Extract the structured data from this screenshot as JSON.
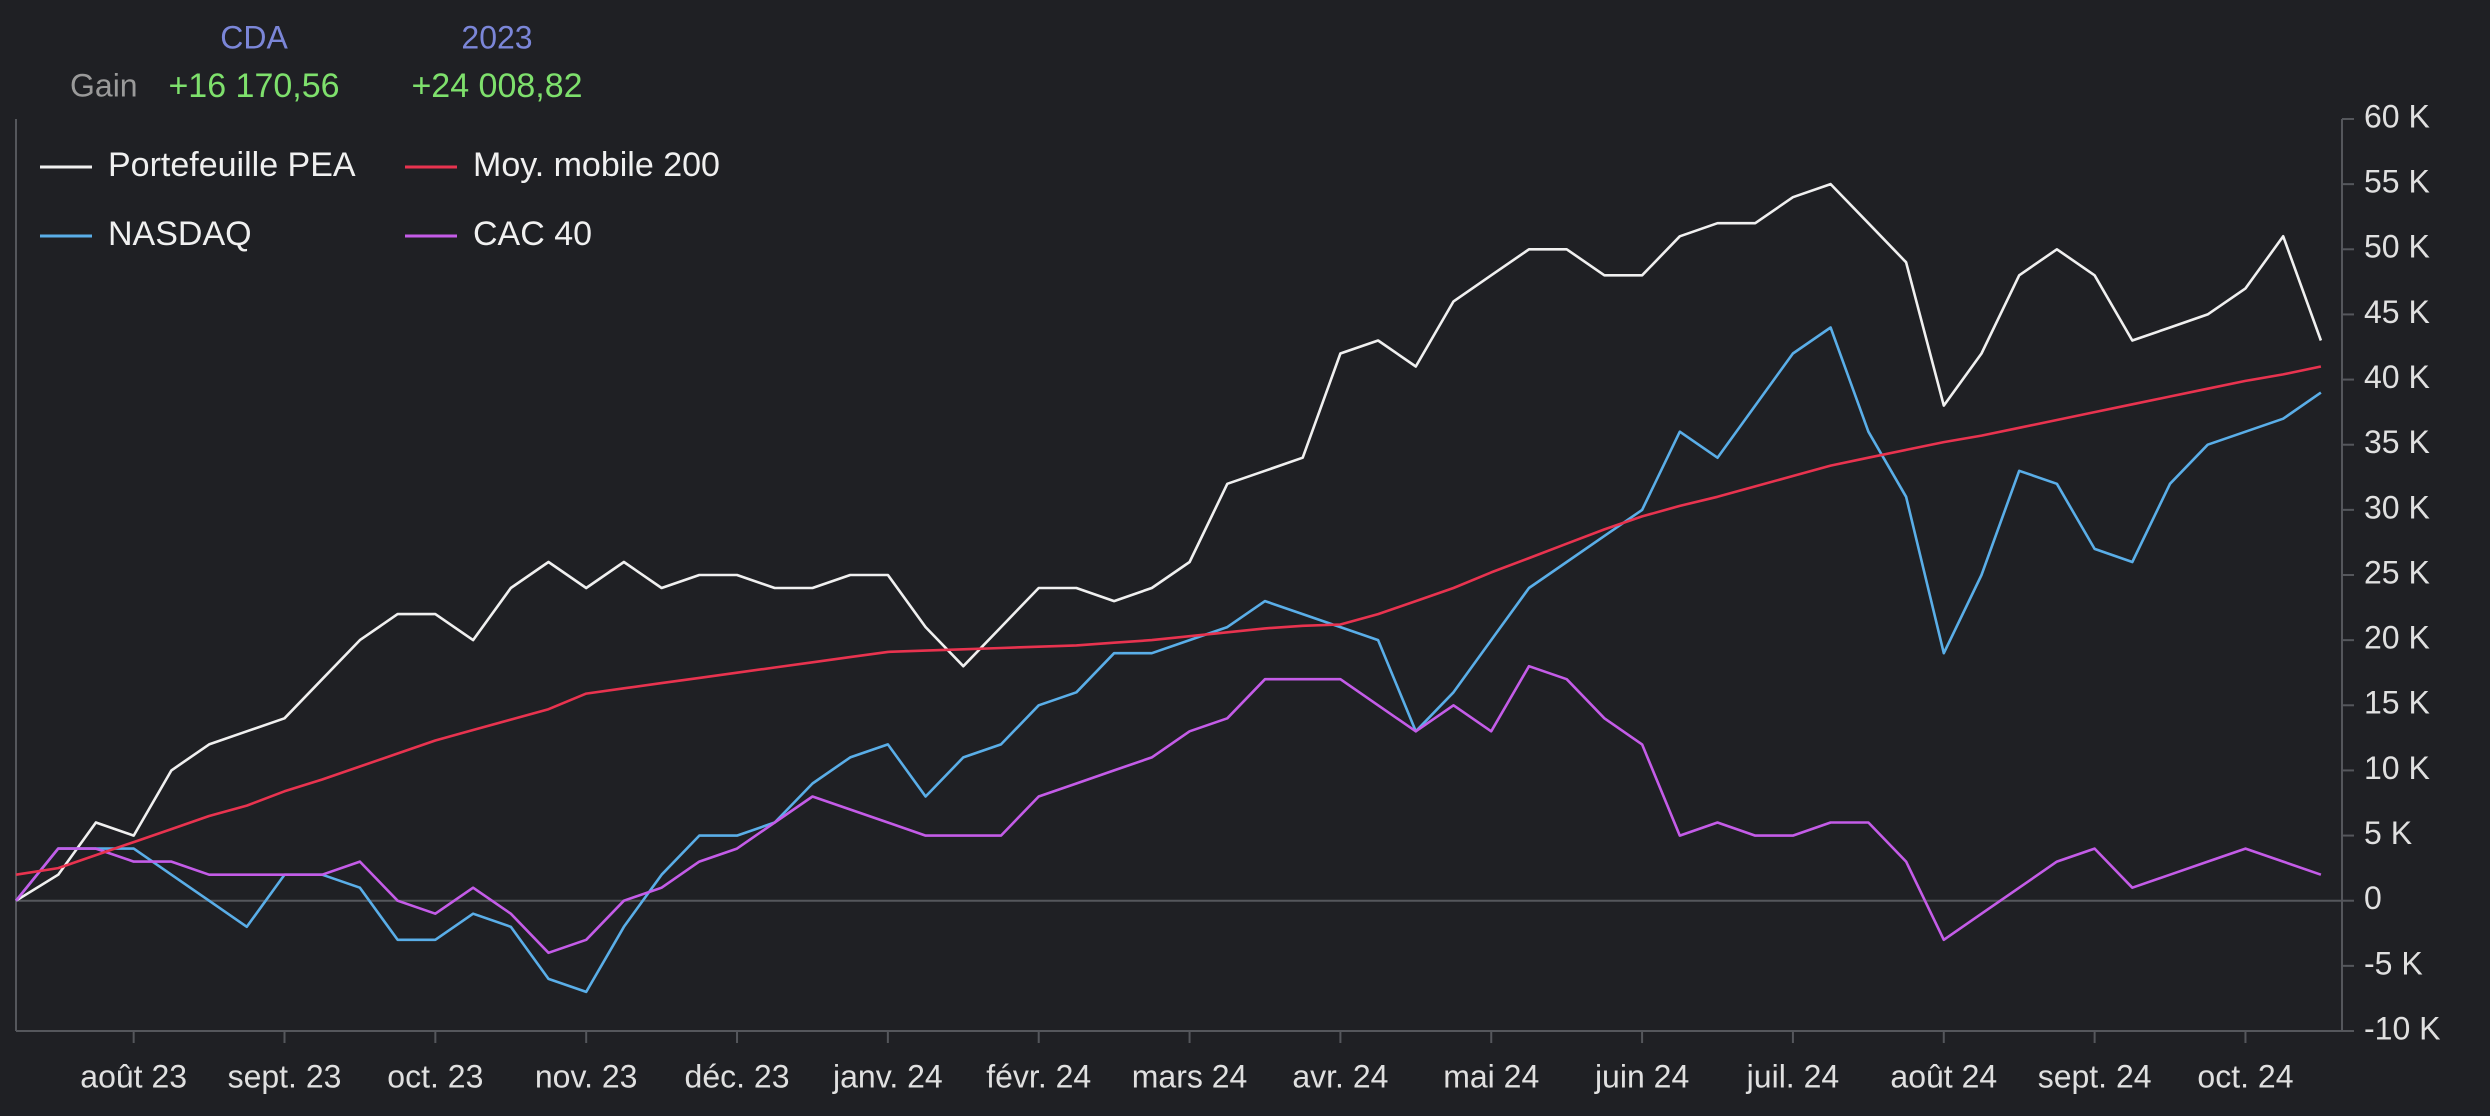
{
  "header": {
    "row_label": "Gain",
    "columns": [
      {
        "title": "CDA",
        "value": "+16 170,56"
      },
      {
        "title": "2023",
        "value": "+24 008,82"
      }
    ]
  },
  "chart_data": {
    "type": "line",
    "legend": "upper left",
    "grid": false,
    "x": [
      0.22,
      0.5,
      0.75,
      1,
      1.25,
      1.5,
      1.75,
      2,
      2.25,
      2.5,
      2.75,
      3,
      3.25,
      3.5,
      3.75,
      4,
      4.25,
      4.5,
      4.75,
      5,
      5.25,
      5.5,
      5.75,
      6,
      6.25,
      6.5,
      6.75,
      7,
      7.25,
      7.5,
      7.75,
      8,
      8.25,
      8.5,
      8.75,
      9,
      9.25,
      9.5,
      9.75,
      10,
      10.25,
      10.5,
      10.75,
      11,
      11.25,
      11.5,
      11.75,
      12,
      12.25,
      12.5,
      12.75,
      13,
      13.25,
      13.5,
      13.75,
      14,
      14.25,
      14.5,
      14.75,
      15,
      15.25,
      15.5
    ],
    "xlim": [
      0.22,
      15.64
    ],
    "xticks": [
      {
        "value": 1,
        "label": "août 23"
      },
      {
        "value": 2,
        "label": "sept. 23"
      },
      {
        "value": 3,
        "label": "oct. 23"
      },
      {
        "value": 4,
        "label": "nov. 23"
      },
      {
        "value": 5,
        "label": "déc. 23"
      },
      {
        "value": 6,
        "label": "janv. 24"
      },
      {
        "value": 7,
        "label": "févr. 24"
      },
      {
        "value": 8,
        "label": "mars 24"
      },
      {
        "value": 9,
        "label": "avr. 24"
      },
      {
        "value": 10,
        "label": "mai 24"
      },
      {
        "value": 11,
        "label": "juin 24"
      },
      {
        "value": 12,
        "label": "juil. 24"
      },
      {
        "value": 13,
        "label": "août 24"
      },
      {
        "value": 14,
        "label": "sept. 24"
      },
      {
        "value": 15,
        "label": "oct. 24"
      }
    ],
    "ylim": [
      -10000,
      60000
    ],
    "yticks": [
      {
        "value": -10000,
        "label": "-10 K"
      },
      {
        "value": -5000,
        "label": "-5 K"
      },
      0,
      {
        "value": 5000,
        "label": "5 K"
      },
      {
        "value": 10000,
        "label": "10 K"
      },
      {
        "value": 15000,
        "label": "15 K"
      },
      {
        "value": 20000,
        "label": "20 K"
      },
      {
        "value": 25000,
        "label": "25 K"
      },
      {
        "value": 30000,
        "label": "30 K"
      },
      {
        "value": 35000,
        "label": "35 K"
      },
      {
        "value": 40000,
        "label": "40 K"
      },
      {
        "value": 45000,
        "label": "45 K"
      },
      {
        "value": 50000,
        "label": "50 K"
      },
      {
        "value": 55000,
        "label": "55 K"
      },
      {
        "value": 60000,
        "label": "60 K"
      }
    ],
    "series": [
      {
        "name": "Portefeuille PEA",
        "color": "#f0f0f0",
        "values": [
          0,
          2000,
          6000,
          5000,
          10000,
          12000,
          13000,
          14000,
          17000,
          20000,
          22000,
          22000,
          20000,
          24000,
          26000,
          24000,
          26000,
          24000,
          25000,
          25000,
          24000,
          24000,
          25000,
          25000,
          21000,
          18000,
          21000,
          24000,
          24000,
          23000,
          24000,
          26000,
          32000,
          33000,
          34000,
          42000,
          43000,
          41000,
          46000,
          48000,
          50000,
          50000,
          48000,
          48000,
          51000,
          52000,
          52000,
          54000,
          55000,
          52000,
          49000,
          38000,
          42000,
          48000,
          50000,
          48000,
          43000,
          44000,
          45000,
          47000,
          51000,
          43000
        ]
      },
      {
        "name": "Moy. mobile 200",
        "color": "#e8334f",
        "values": [
          2000,
          2500,
          3500,
          4500,
          5500,
          6500,
          7300,
          8400,
          9300,
          10300,
          11300,
          12300,
          13100,
          13900,
          14700,
          15900,
          16300,
          16700,
          17100,
          17500,
          17900,
          18300,
          18700,
          19100,
          19200,
          19300,
          19400,
          19500,
          19600,
          19800,
          20000,
          20300,
          20600,
          20900,
          21100,
          21200,
          22000,
          23000,
          24000,
          25200,
          26300,
          27400,
          28500,
          29500,
          30300,
          31000,
          31800,
          32600,
          33400,
          34000,
          34600,
          35200,
          35700,
          36300,
          36900,
          37500,
          38100,
          38700,
          39300,
          39900,
          40400,
          41000
        ]
      },
      {
        "name": "NASDAQ",
        "color": "#5aaee8",
        "values": [
          0,
          4000,
          4000,
          4000,
          2000,
          0,
          -2000,
          2000,
          2000,
          1000,
          -3000,
          -3000,
          -1000,
          -2000,
          -6000,
          -7000,
          -2000,
          2000,
          5000,
          5000,
          6000,
          9000,
          11000,
          12000,
          8000,
          11000,
          12000,
          15000,
          16000,
          19000,
          19000,
          20000,
          21000,
          23000,
          22000,
          21000,
          20000,
          13000,
          16000,
          20000,
          24000,
          26000,
          28000,
          30000,
          36000,
          34000,
          38000,
          42000,
          44000,
          36000,
          31000,
          19000,
          25000,
          33000,
          32000,
          27000,
          26000,
          32000,
          35000,
          36000,
          37000,
          39000
        ]
      },
      {
        "name": "CAC 40",
        "color": "#c45ce8",
        "values": [
          0,
          4000,
          4000,
          3000,
          3000,
          2000,
          2000,
          2000,
          2000,
          3000,
          0,
          -1000,
          1000,
          -1000,
          -4000,
          -3000,
          0,
          1000,
          3000,
          4000,
          6000,
          8000,
          7000,
          6000,
          5000,
          5000,
          5000,
          8000,
          9000,
          10000,
          11000,
          13000,
          14000,
          17000,
          17000,
          17000,
          15000,
          13000,
          15000,
          13000,
          18000,
          17000,
          14000,
          12000,
          5000,
          6000,
          5000,
          5000,
          6000,
          6000,
          3000,
          -3000,
          -1000,
          1000,
          3000,
          4000,
          1000,
          2000,
          3000,
          4000,
          3000,
          2000
        ]
      }
    ]
  }
}
